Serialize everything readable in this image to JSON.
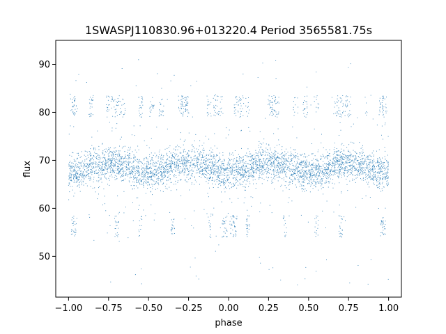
{
  "chart_data": {
    "type": "scatter",
    "title": "1SWASPJ110830.96+013220.4 Period 3565581.75s",
    "xlabel": "phase",
    "ylabel": "flux",
    "xlim": [
      -1.08,
      1.08
    ],
    "ylim": [
      41.5,
      95
    ],
    "xticks": [
      -1.0,
      -0.75,
      -0.5,
      -0.25,
      0.0,
      0.25,
      0.5,
      0.75,
      1.0
    ],
    "xtick_labels": [
      "−1.00",
      "−0.75",
      "−0.50",
      "−0.25",
      "0.00",
      "0.25",
      "0.50",
      "0.75",
      "1.00"
    ],
    "yticks": [
      50,
      60,
      70,
      80,
      90
    ],
    "ytick_labels": [
      "50",
      "60",
      "70",
      "80",
      "90"
    ],
    "grid": false,
    "marker_color": "#1f77b4",
    "x_range": [
      -1.0,
      1.0
    ],
    "series": [
      {
        "values_summary": "dense phase-folded light curve, symmetric about phase 0; main band centered near flux 68 (range ~60-76); upper clumps near flux 80-84 at phases around ±0.97, ±0.75 to ±0.65, ±0.30 to ±0.25, ±0.10 to ±0.05; lower clumps near flux 54-58 at phases around ±0.97 and ±0.03; sparse outliers from ~44 to ~91",
        "sample_points": [
          [
            -0.98,
            56
          ],
          [
            -0.96,
            82
          ],
          [
            -0.7,
            82
          ],
          [
            -0.5,
            68
          ],
          [
            -0.28,
            80
          ],
          [
            -0.05,
            57
          ],
          [
            0.0,
            68
          ],
          [
            0.03,
            56
          ],
          [
            0.3,
            82
          ],
          [
            0.5,
            68
          ],
          [
            0.7,
            81
          ],
          [
            0.96,
            81
          ],
          [
            0.98,
            57
          ]
        ]
      }
    ]
  }
}
